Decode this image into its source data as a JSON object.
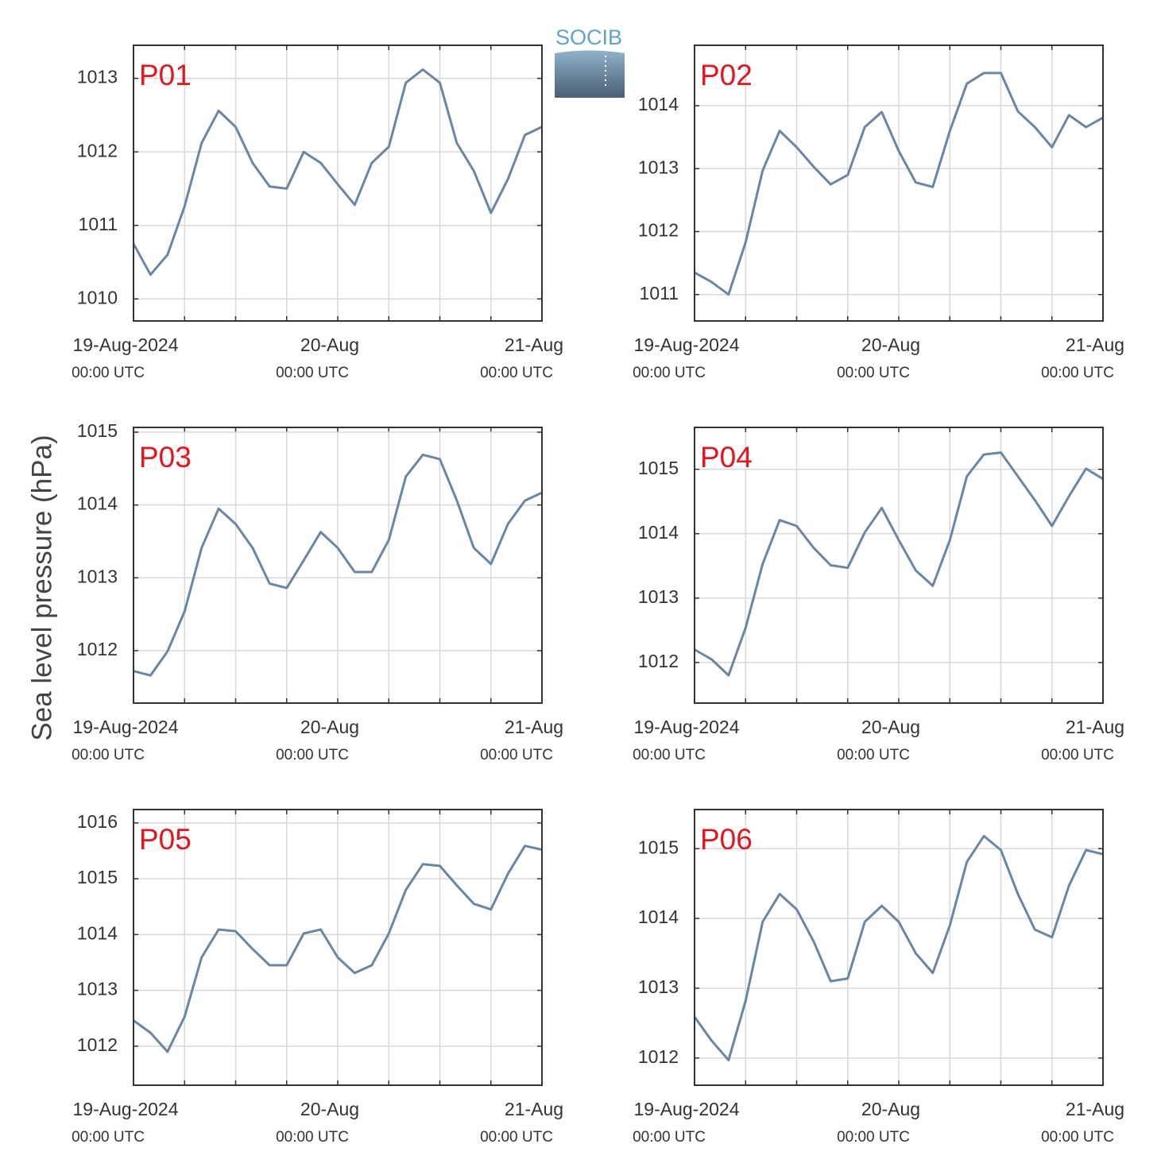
{
  "y_label": "Sea level pressure (hPa)",
  "logo": "SOCIB",
  "chart_data": [
    {
      "type": "line",
      "title": "P01",
      "color": "#6787a8",
      "grid": true,
      "x": [
        0,
        2,
        4,
        6,
        8,
        10,
        12,
        14,
        16,
        18,
        20,
        22,
        24,
        26,
        28,
        30,
        32,
        34,
        36,
        38,
        40,
        42,
        44,
        46,
        48
      ],
      "values": [
        1010.75,
        1010.33,
        1010.6,
        1011.26,
        1012.12,
        1012.56,
        1012.34,
        1011.85,
        1011.53,
        1011.5,
        1012.0,
        1011.85,
        1011.56,
        1011.28,
        1011.85,
        1012.07,
        1012.94,
        1013.12,
        1012.94,
        1012.12,
        1011.74,
        1011.17,
        1011.63,
        1012.23,
        1012.34
      ],
      "xlim": [
        0,
        48
      ],
      "xticks": [
        {
          "value": 0,
          "label": "19-Aug-2024",
          "sublabel": "00:00 UTC"
        },
        {
          "value": 6,
          "label": null
        },
        {
          "value": 12,
          "label": null
        },
        {
          "value": 18,
          "label": null
        },
        {
          "value": 24,
          "label": "20-Aug",
          "sublabel": "00:00 UTC"
        },
        {
          "value": 30,
          "label": null
        },
        {
          "value": 36,
          "label": null
        },
        {
          "value": 42,
          "label": null
        },
        {
          "value": 48,
          "label": "21-Aug",
          "sublabel": "00:00 UTC"
        }
      ],
      "ylim": [
        1009.7,
        1013.45
      ],
      "yticks": [
        1010,
        1011,
        1012,
        1013
      ]
    },
    {
      "type": "line",
      "title": "P02",
      "color": "#6787a8",
      "grid": true,
      "x": [
        0,
        2,
        4,
        6,
        8,
        10,
        12,
        14,
        16,
        18,
        20,
        22,
        24,
        26,
        28,
        30,
        32,
        34,
        36,
        38,
        40,
        42,
        44,
        46,
        48
      ],
      "values": [
        1011.35,
        1011.2,
        1011.0,
        1011.83,
        1012.97,
        1013.6,
        1013.34,
        1013.03,
        1012.75,
        1012.9,
        1013.66,
        1013.9,
        1013.28,
        1012.78,
        1012.71,
        1013.6,
        1014.35,
        1014.52,
        1014.52,
        1013.91,
        1013.66,
        1013.34,
        1013.85,
        1013.66,
        1013.81
      ],
      "xlim": [
        0,
        48
      ],
      "xticks": [
        {
          "value": 0,
          "label": "19-Aug-2024",
          "sublabel": "00:00 UTC"
        },
        {
          "value": 6,
          "label": null
        },
        {
          "value": 12,
          "label": null
        },
        {
          "value": 18,
          "label": null
        },
        {
          "value": 24,
          "label": "20-Aug",
          "sublabel": "00:00 UTC"
        },
        {
          "value": 30,
          "label": null
        },
        {
          "value": 36,
          "label": null
        },
        {
          "value": 42,
          "label": null
        },
        {
          "value": 48,
          "label": "21-Aug",
          "sublabel": "00:00 UTC"
        }
      ],
      "ylim": [
        1010.58,
        1014.96
      ],
      "yticks": [
        1011,
        1012,
        1013,
        1014
      ]
    },
    {
      "type": "line",
      "title": "P03",
      "color": "#6787a8",
      "grid": true,
      "x": [
        0,
        2,
        4,
        6,
        8,
        10,
        12,
        14,
        16,
        18,
        20,
        22,
        24,
        26,
        28,
        30,
        32,
        34,
        36,
        38,
        40,
        42,
        44,
        46,
        48
      ],
      "values": [
        1011.72,
        1011.66,
        1011.99,
        1012.54,
        1013.41,
        1013.95,
        1013.74,
        1013.41,
        1012.92,
        1012.86,
        1013.24,
        1013.63,
        1013.41,
        1013.08,
        1013.08,
        1013.52,
        1014.39,
        1014.69,
        1014.63,
        1014.06,
        1013.41,
        1013.19,
        1013.74,
        1014.06,
        1014.17
      ],
      "xlim": [
        0,
        48
      ],
      "xticks": [
        {
          "value": 0,
          "label": "19-Aug-2024",
          "sublabel": "00:00 UTC"
        },
        {
          "value": 6,
          "label": null
        },
        {
          "value": 12,
          "label": null
        },
        {
          "value": 18,
          "label": null
        },
        {
          "value": 24,
          "label": "20-Aug",
          "sublabel": "00:00 UTC"
        },
        {
          "value": 30,
          "label": null
        },
        {
          "value": 36,
          "label": null
        },
        {
          "value": 42,
          "label": null
        },
        {
          "value": 48,
          "label": "21-Aug",
          "sublabel": "00:00 UTC"
        }
      ],
      "ylim": [
        1011.28,
        1015.065
      ],
      "yticks": [
        1012,
        1013,
        1014,
        1015
      ]
    },
    {
      "type": "line",
      "title": "P04",
      "color": "#6787a8",
      "grid": true,
      "x": [
        0,
        2,
        4,
        6,
        8,
        10,
        12,
        14,
        16,
        18,
        20,
        22,
        24,
        26,
        28,
        30,
        32,
        34,
        36,
        38,
        40,
        42,
        44,
        46,
        48
      ],
      "values": [
        1012.2,
        1012.05,
        1011.8,
        1012.54,
        1013.53,
        1014.21,
        1014.12,
        1013.78,
        1013.51,
        1013.47,
        1014.02,
        1014.4,
        1013.9,
        1013.43,
        1013.19,
        1013.9,
        1014.89,
        1015.23,
        1015.26,
        1014.89,
        1014.52,
        1014.12,
        1014.58,
        1015.01,
        1014.85
      ],
      "xlim": [
        0,
        48
      ],
      "xticks": [
        {
          "value": 0,
          "label": "19-Aug-2024",
          "sublabel": "00:00 UTC"
        },
        {
          "value": 6,
          "label": null
        },
        {
          "value": 12,
          "label": null
        },
        {
          "value": 18,
          "label": null
        },
        {
          "value": 24,
          "label": "20-Aug",
          "sublabel": "00:00 UTC"
        },
        {
          "value": 30,
          "label": null
        },
        {
          "value": 36,
          "label": null
        },
        {
          "value": 42,
          "label": null
        },
        {
          "value": 48,
          "label": "21-Aug",
          "sublabel": "00:00 UTC"
        }
      ],
      "ylim": [
        1011.37,
        1015.65
      ],
      "yticks": [
        1012,
        1013,
        1014,
        1015
      ]
    },
    {
      "type": "line",
      "title": "P05",
      "color": "#6787a8",
      "grid": true,
      "x": [
        0,
        2,
        4,
        6,
        8,
        10,
        12,
        14,
        16,
        18,
        20,
        22,
        24,
        26,
        28,
        30,
        32,
        34,
        36,
        38,
        40,
        42,
        44,
        46,
        48
      ],
      "values": [
        1012.46,
        1012.24,
        1011.9,
        1012.53,
        1013.59,
        1014.09,
        1014.06,
        1013.74,
        1013.45,
        1013.45,
        1014.02,
        1014.09,
        1013.59,
        1013.31,
        1013.45,
        1014.02,
        1014.8,
        1015.26,
        1015.23,
        1014.88,
        1014.55,
        1014.45,
        1015.09,
        1015.59,
        1015.52
      ],
      "xlim": [
        0,
        48
      ],
      "xticks": [
        {
          "value": 0,
          "label": "19-Aug-2024",
          "sublabel": "00:00 UTC"
        },
        {
          "value": 6,
          "label": null
        },
        {
          "value": 12,
          "label": null
        },
        {
          "value": 18,
          "label": null
        },
        {
          "value": 24,
          "label": "20-Aug",
          "sublabel": "00:00 UTC"
        },
        {
          "value": 30,
          "label": null
        },
        {
          "value": 36,
          "label": null
        },
        {
          "value": 42,
          "label": null
        },
        {
          "value": 48,
          "label": "21-Aug",
          "sublabel": "00:00 UTC"
        }
      ],
      "ylim": [
        1011.3,
        1016.24
      ],
      "yticks": [
        1012,
        1013,
        1014,
        1015,
        1016
      ]
    },
    {
      "type": "line",
      "title": "P06",
      "color": "#6787a8",
      "grid": true,
      "x": [
        0,
        2,
        4,
        6,
        8,
        10,
        12,
        14,
        16,
        18,
        20,
        22,
        24,
        26,
        28,
        30,
        32,
        34,
        36,
        38,
        40,
        42,
        44,
        46,
        48
      ],
      "values": [
        1012.59,
        1012.25,
        1011.97,
        1012.82,
        1013.95,
        1014.35,
        1014.13,
        1013.67,
        1013.1,
        1013.14,
        1013.95,
        1014.18,
        1013.95,
        1013.5,
        1013.22,
        1013.9,
        1014.81,
        1015.18,
        1014.98,
        1014.35,
        1013.84,
        1013.73,
        1014.47,
        1014.98,
        1014.92
      ],
      "xlim": [
        0,
        48
      ],
      "xticks": [
        {
          "value": 0,
          "label": "19-Aug-2024",
          "sublabel": "00:00 UTC"
        },
        {
          "value": 6,
          "label": null
        },
        {
          "value": 12,
          "label": null
        },
        {
          "value": 18,
          "label": null
        },
        {
          "value": 24,
          "label": "20-Aug",
          "sublabel": "00:00 UTC"
        },
        {
          "value": 30,
          "label": null
        },
        {
          "value": 36,
          "label": null
        },
        {
          "value": 42,
          "label": null
        },
        {
          "value": 48,
          "label": "21-Aug",
          "sublabel": "00:00 UTC"
        }
      ],
      "ylim": [
        1011.61,
        1015.56
      ],
      "yticks": [
        1012,
        1013,
        1014,
        1015
      ]
    }
  ]
}
